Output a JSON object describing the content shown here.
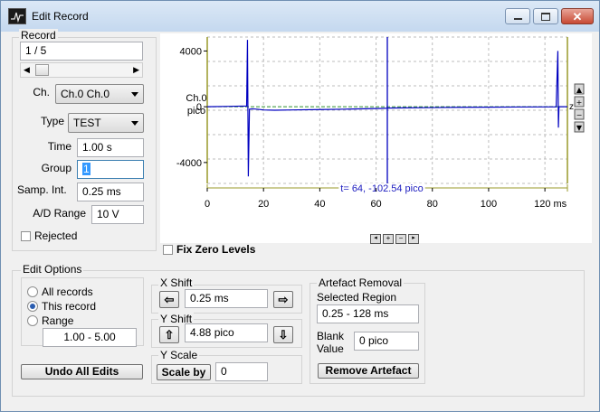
{
  "window": {
    "title": "Edit Record"
  },
  "record": {
    "group_label": "Record",
    "value": "1 / 5",
    "channel_label": "Ch.",
    "channel_value": "Ch.0 Ch.0",
    "type_label": "Type",
    "type_value": "TEST",
    "time_label": "Time",
    "time_value": "1.00 s",
    "group_field_label": "Group",
    "group_value": "1",
    "samp_int_label": "Samp. Int.",
    "samp_int_value": "0.25 ms",
    "ad_range_label": "A/D Range",
    "ad_range_value": "10 V",
    "rejected_label": "Rejected"
  },
  "plot": {
    "channel_name": "Ch.0",
    "channel_units": "pico",
    "cursor_readout": "t=   64, -102.54 pico",
    "x_ticks": [
      "0",
      "20",
      "40",
      "60",
      "80",
      "100",
      "120 ms"
    ],
    "y_ticks": [
      "4000",
      "0",
      "-4000"
    ],
    "zero_marker": "z",
    "zoom_buttons": [
      "zoom-in",
      "zoom-out",
      "zoom-reset"
    ],
    "fix_zero_label": "Fix Zero Levels"
  },
  "chart_data": {
    "type": "line",
    "xlabel": "",
    "ylabel": "Ch.0 pico",
    "xlim": [
      0,
      128
    ],
    "ylim": [
      -5500,
      5000
    ],
    "cursor_x": 64,
    "series": [
      {
        "color": "#0000c0",
        "x": [
          0,
          14,
          14.3,
          14.6,
          15,
          16,
          18,
          20,
          24,
          30,
          40,
          50,
          60,
          62,
          63.9,
          64,
          64.1,
          70,
          80,
          90,
          100,
          110,
          120,
          124,
          124.6,
          124.8,
          125,
          128
        ],
        "y": [
          0,
          50,
          4800,
          -5000,
          -180,
          -150,
          -180,
          -230,
          -250,
          -230,
          -200,
          -170,
          -130,
          -120,
          -105,
          -102.54,
          -95,
          -80,
          -60,
          -40,
          -30,
          -20,
          -10,
          -5,
          4000,
          -1500,
          0,
          0
        ]
      }
    ]
  },
  "edit_options": {
    "group_label": "Edit Options",
    "all_records": "All records",
    "this_record": "This record",
    "range": "Range",
    "range_value": "1.00 - 5.00",
    "selected": "this_record",
    "undo_label": "Undo All Edits"
  },
  "x_shift": {
    "label": "X Shift",
    "value": "0.25 ms"
  },
  "y_shift": {
    "label": "Y Shift",
    "value": "4.88 pico"
  },
  "y_scale": {
    "label": "Y Scale",
    "button_label": "Scale by",
    "value": "0"
  },
  "artefact": {
    "group_label": "Artefact Removal",
    "region_label": "Selected Region",
    "region_value": "0.25 - 128 ms",
    "blank_label_1": "Blank",
    "blank_label_2": "Value",
    "blank_value": "0 pico",
    "remove_label": "Remove Artefact"
  },
  "colors": {
    "trace": "#0000c0",
    "zero_line": "#2f8f2f",
    "cursor": "#0000c0",
    "axis_frame": "#9a9a2a",
    "readout": "#2020c0"
  }
}
